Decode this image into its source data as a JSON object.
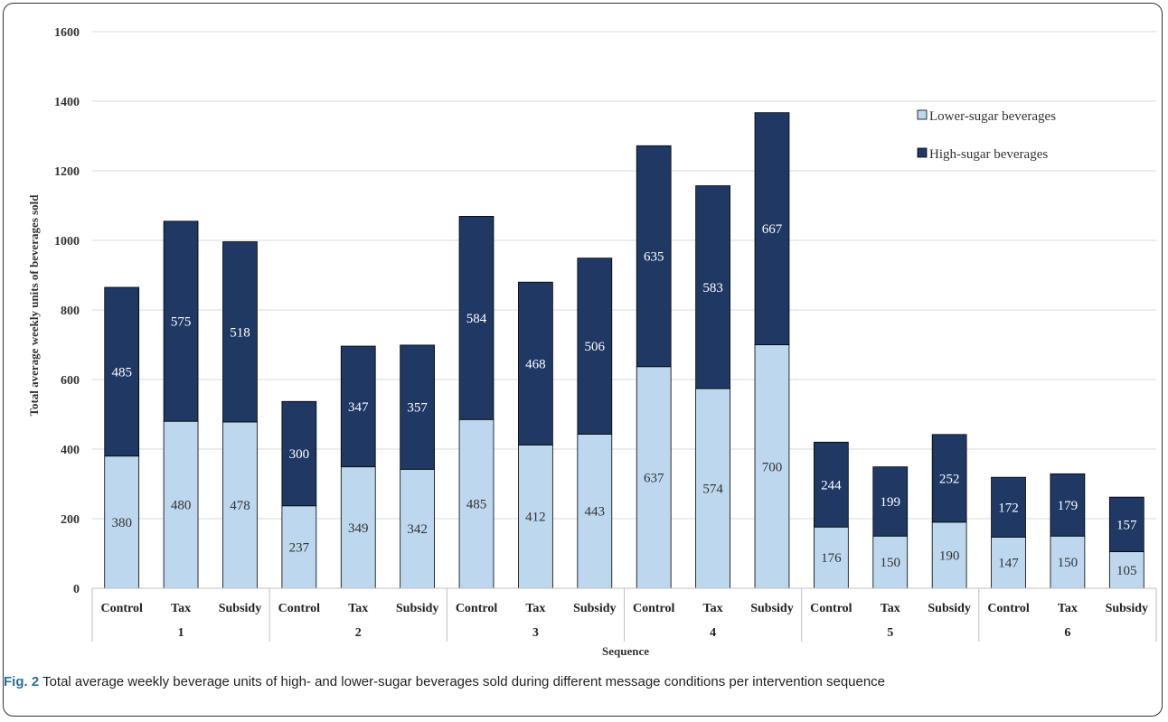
{
  "chart_data": {
    "type": "bar",
    "stacked": true,
    "ylabel": "Total average weekly units of beverages sold",
    "xlabel": "Sequence",
    "ylim": [
      0,
      1600
    ],
    "yticks": [
      "0",
      "200",
      "400",
      "600",
      "800",
      "1000",
      "1200",
      "1400",
      "1600"
    ],
    "grid": true,
    "legend_position": "top-right",
    "groups": [
      "1",
      "2",
      "3",
      "4",
      "5",
      "6"
    ],
    "conditions": [
      "Control",
      "Tax",
      "Subsidy"
    ],
    "categories": [
      "Control",
      "Tax",
      "Subsidy",
      "Control",
      "Tax",
      "Subsidy",
      "Control",
      "Tax",
      "Subsidy",
      "Control",
      "Tax",
      "Subsidy",
      "Control",
      "Tax",
      "Subsidy",
      "Control",
      "Tax",
      "Subsidy"
    ],
    "series": [
      {
        "name": "Lower-sugar beverages",
        "color": "#bdd7ee",
        "label_color": "#333333",
        "values": [
          380,
          480,
          478,
          237,
          349,
          342,
          485,
          412,
          443,
          637,
          574,
          700,
          176,
          150,
          190,
          147,
          150,
          105
        ]
      },
      {
        "name": "High-sugar beverages",
        "color": "#1f3864",
        "label_color": "#ffffff",
        "values": [
          485,
          575,
          518,
          300,
          347,
          357,
          584,
          468,
          506,
          635,
          583,
          667,
          244,
          199,
          252,
          172,
          179,
          157
        ]
      }
    ]
  },
  "caption": {
    "label": "Fig. 2",
    "text": " Total average weekly beverage units of high- and lower-sugar beverages sold during different message conditions per intervention sequence"
  }
}
